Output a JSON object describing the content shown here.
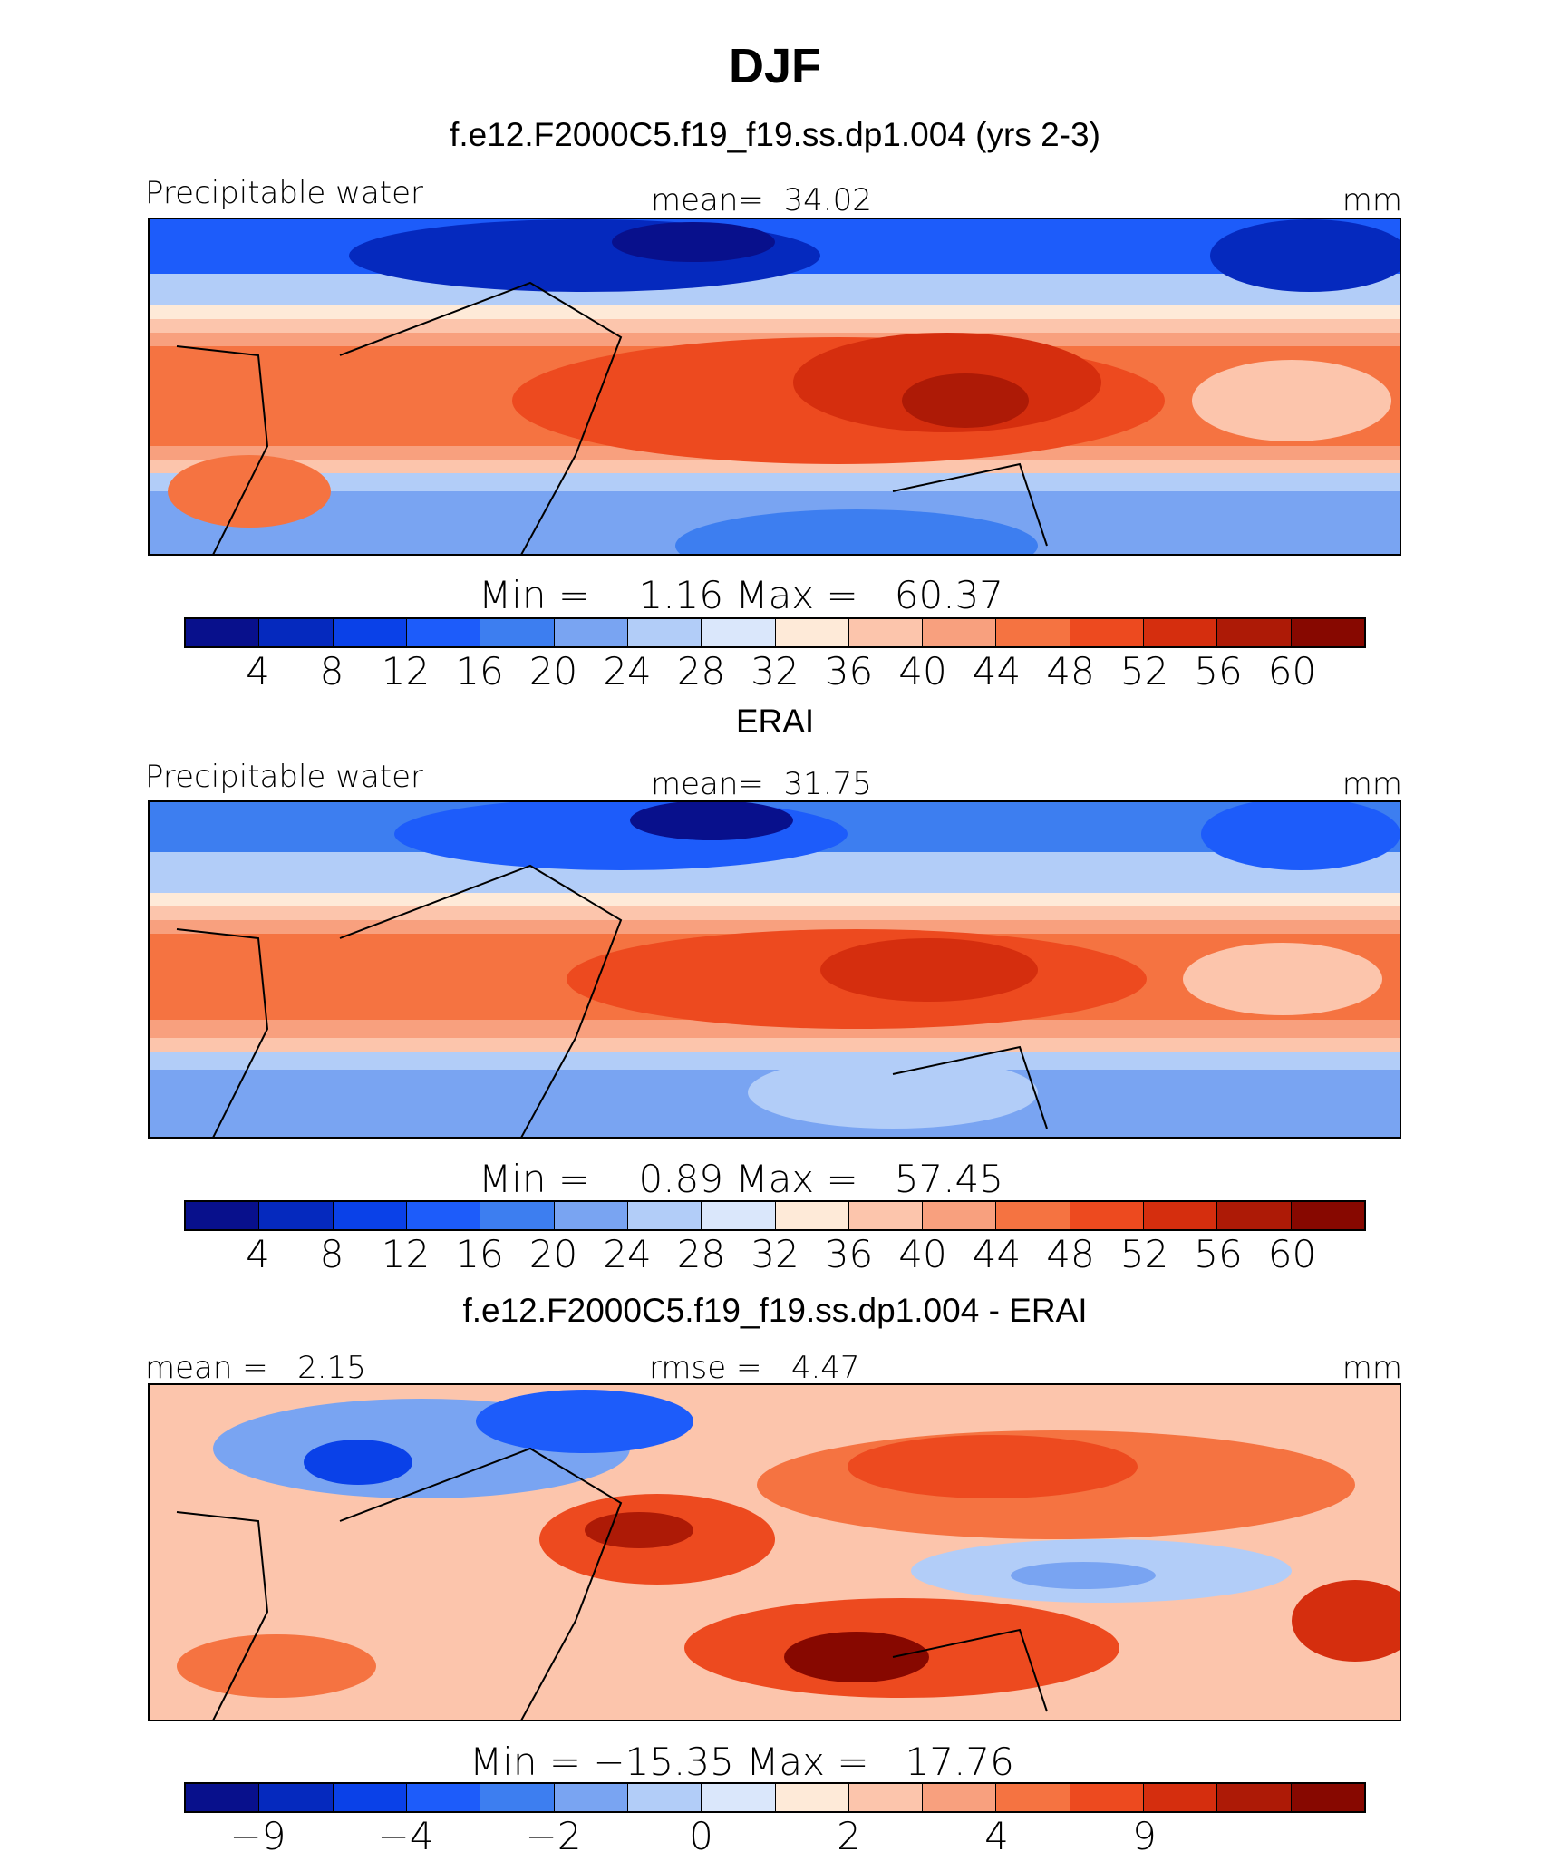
{
  "title": "DJF",
  "colors": [
    "#08108c",
    "#0529be",
    "#0a41e8",
    "#1d5cfa",
    "#3d7ef0",
    "#79a4f2",
    "#b2cdf8",
    "#dae7fb",
    "#feead8",
    "#fcc5ac",
    "#f8a07e",
    "#f57341",
    "#ed4a1f",
    "#d52e0e",
    "#ad1a06",
    "#870800"
  ],
  "panels": [
    {
      "case_title": "f.e12.F2000C5.f19_f19.ss.dp1.004 (yrs 2-3)",
      "left_label": "Precipitable water",
      "center_label": "mean=  34.02",
      "units": "mm",
      "minmax": "Min =    1.16 Max =   60.37",
      "ticks": [
        "4",
        "8",
        "12",
        "16",
        "20",
        "24",
        "28",
        "32",
        "36",
        "40",
        "44",
        "48",
        "52",
        "56",
        "60"
      ]
    },
    {
      "case_title": "ERAI",
      "left_label": "Precipitable water",
      "center_label": "mean=  31.75",
      "units": "mm",
      "minmax": "Min =    0.89 Max =   57.45",
      "ticks": [
        "4",
        "8",
        "12",
        "16",
        "20",
        "24",
        "28",
        "32",
        "36",
        "40",
        "44",
        "48",
        "52",
        "56",
        "60"
      ]
    },
    {
      "case_title": "f.e12.F2000C5.f19_f19.ss.dp1.004 - ERAI",
      "left_label": "mean =   2.15",
      "center_label": "rmse =   4.47",
      "units": "mm",
      "minmax": "Min = −15.35 Max =   17.76",
      "ticks": [
        "−9",
        "",
        "−4",
        "",
        "−2",
        "",
        "0",
        "",
        "2",
        "",
        "4",
        "",
        "9",
        "",
        ""
      ]
    }
  ],
  "chart_data": [
    {
      "type": "heatmap",
      "title": "f.e12.F2000C5.f19_f19.ss.dp1.004 (yrs 2-3)",
      "variable": "Precipitable water",
      "units": "mm",
      "mean": 34.02,
      "min": 1.16,
      "max": 60.37,
      "contour_levels": [
        4,
        8,
        12,
        16,
        20,
        24,
        28,
        32,
        36,
        40,
        44,
        48,
        52,
        56,
        60
      ]
    },
    {
      "type": "heatmap",
      "title": "ERAI",
      "variable": "Precipitable water",
      "units": "mm",
      "mean": 31.75,
      "min": 0.89,
      "max": 57.45,
      "contour_levels": [
        4,
        8,
        12,
        16,
        20,
        24,
        28,
        32,
        36,
        40,
        44,
        48,
        52,
        56,
        60
      ]
    },
    {
      "type": "heatmap",
      "title": "f.e12.F2000C5.f19_f19.ss.dp1.004 - ERAI",
      "units": "mm",
      "mean": 2.15,
      "rmse": 4.47,
      "min": -15.35,
      "max": 17.76,
      "contour_levels": [
        -9,
        -4,
        -2,
        0,
        2,
        4,
        9
      ]
    }
  ]
}
